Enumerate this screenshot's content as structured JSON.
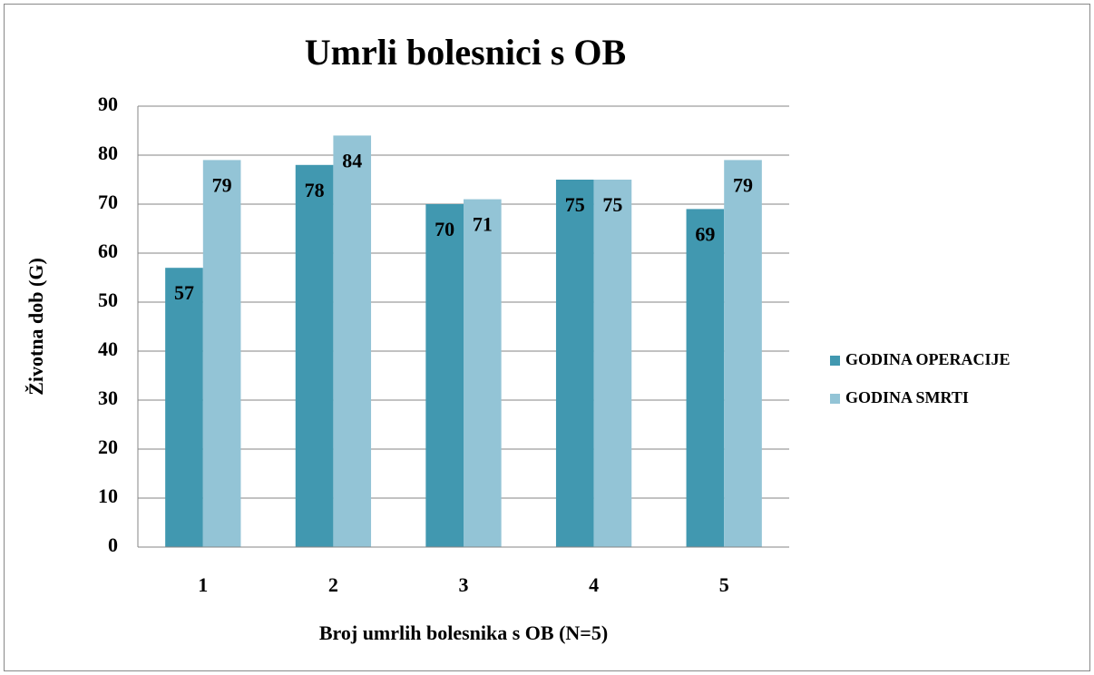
{
  "chart_data": {
    "type": "bar",
    "title": "Umrli bolesnici s OB",
    "x_label": "Broj umrlih bolesnika s OB (N=5)",
    "y_label": "Životna dob (G)",
    "categories": [
      "1",
      "2",
      "3",
      "4",
      "5"
    ],
    "series": [
      {
        "name": "GODINA OPERACIJE",
        "color": "#4198b0",
        "values": [
          57,
          78,
          70,
          75,
          69
        ]
      },
      {
        "name": "GODINA SMRTI",
        "color": "#93c4d6",
        "values": [
          79,
          84,
          71,
          75,
          79
        ]
      }
    ],
    "ylim": [
      0,
      90
    ],
    "yticks": [
      0,
      10,
      20,
      30,
      40,
      50,
      60,
      70,
      80,
      90
    ],
    "grid": true,
    "legend": "right"
  }
}
